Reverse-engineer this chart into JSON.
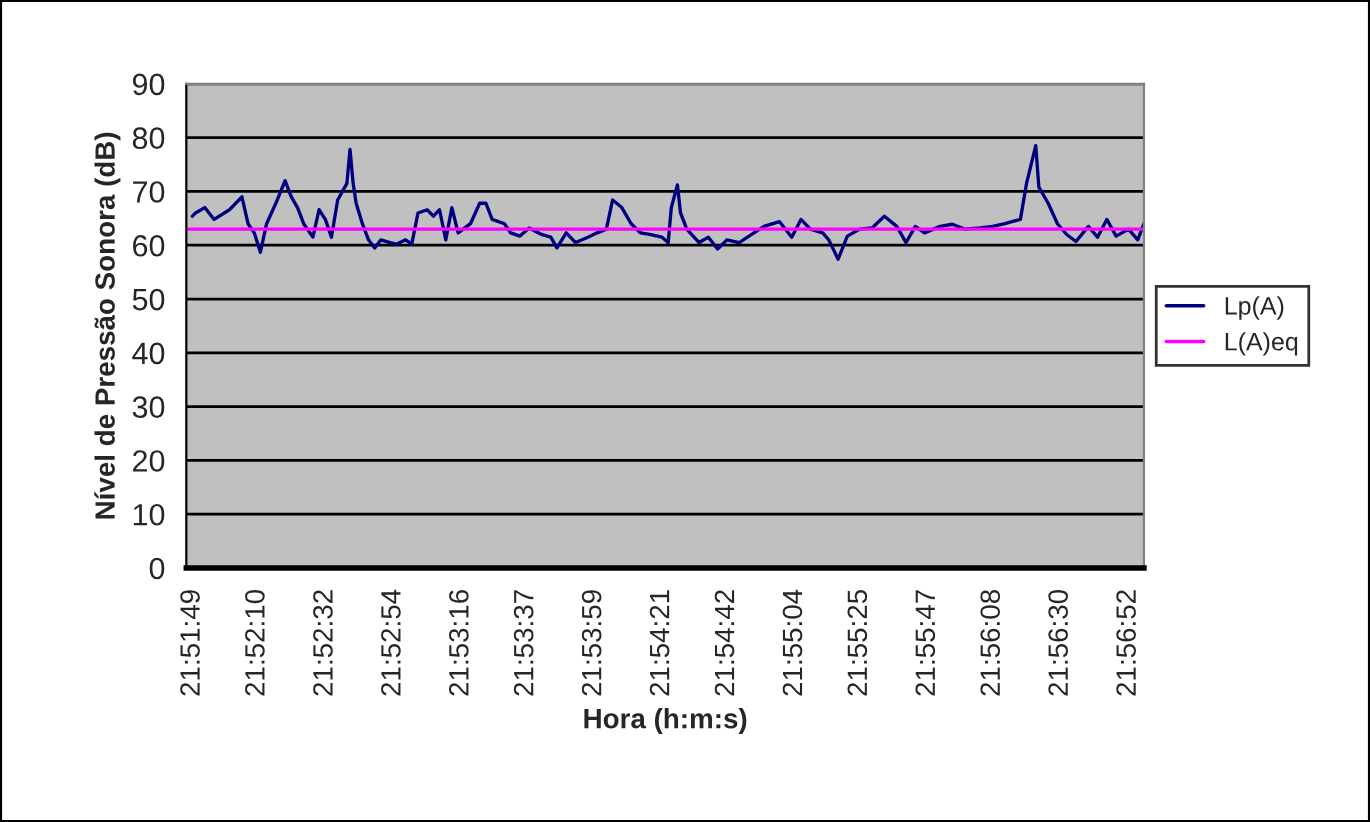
{
  "chart_data": {
    "type": "line",
    "xlabel": "Hora (h:m:s)",
    "ylabel": "Nível de Pressão Sonora (dB)",
    "xlim": [
      21.86306,
      21.94917
    ],
    "ylim": [
      0,
      90
    ],
    "yticks": [
      0,
      10,
      20,
      30,
      40,
      50,
      60,
      70,
      80,
      90
    ],
    "xticks": [
      {
        "value": 21.86361,
        "label": "21:51:49"
      },
      {
        "value": 21.86944,
        "label": "21:52:10"
      },
      {
        "value": 21.87556,
        "label": "21:52:32"
      },
      {
        "value": 21.88167,
        "label": "21:52:54"
      },
      {
        "value": 21.88778,
        "label": "21:53:16"
      },
      {
        "value": 21.89361,
        "label": "21:53:37"
      },
      {
        "value": 21.89972,
        "label": "21:53:59"
      },
      {
        "value": 21.90583,
        "label": "21:54:21"
      },
      {
        "value": 21.91167,
        "label": "21:54:42"
      },
      {
        "value": 21.91778,
        "label": "21:55:04"
      },
      {
        "value": 21.92361,
        "label": "21:55:25"
      },
      {
        "value": 21.92972,
        "label": "21:55:47"
      },
      {
        "value": 21.93556,
        "label": "21:56:08"
      },
      {
        "value": 21.94167,
        "label": "21:56:30"
      },
      {
        "value": 21.94778,
        "label": "21:56:52"
      }
    ],
    "grid": "y",
    "legend": "right",
    "marker": "none",
    "line_style": "solid",
    "series": [
      {
        "name": "Lp(A)",
        "color": "#000080",
        "x": [
          21.86361,
          21.86389,
          21.86472,
          21.86556,
          21.86694,
          21.86806,
          21.86861,
          21.86917,
          21.86972,
          21.87028,
          21.87111,
          21.87194,
          21.8725,
          21.87306,
          21.87361,
          21.87444,
          21.875,
          21.87556,
          21.87611,
          21.87667,
          21.8775,
          21.87778,
          21.87806,
          21.87833,
          21.87889,
          21.87944,
          21.88,
          21.88056,
          21.88139,
          21.88194,
          21.88278,
          21.88333,
          21.88389,
          21.88472,
          21.88528,
          21.88583,
          21.88639,
          21.88694,
          21.8875,
          21.88861,
          21.88944,
          21.89,
          21.89056,
          21.89167,
          21.89222,
          21.89306,
          21.89389,
          21.895,
          21.89583,
          21.89639,
          21.89722,
          21.89806,
          21.89917,
          21.9,
          21.90083,
          21.90139,
          21.90222,
          21.90306,
          21.90389,
          21.90472,
          21.90583,
          21.90639,
          21.90667,
          21.90722,
          21.9075,
          21.90806,
          21.90917,
          21.91,
          21.91083,
          21.91167,
          21.91278,
          21.91389,
          21.915,
          21.91639,
          21.9175,
          21.91833,
          21.91917,
          21.92028,
          21.92083,
          21.92167,
          21.9225,
          21.92361,
          21.92472,
          21.92583,
          21.92694,
          21.92778,
          21.92861,
          21.92944,
          21.93083,
          21.93194,
          21.93306,
          21.93444,
          21.93556,
          21.93667,
          21.93806,
          21.93861,
          21.93944,
          21.93972,
          21.94056,
          21.94139,
          21.94222,
          21.94306,
          21.94417,
          21.945,
          21.94583,
          21.94667,
          21.94778,
          21.94861,
          21.94917
        ],
        "values": [
          65.4,
          66,
          67,
          64.8,
          66.6,
          69,
          64,
          62.3,
          58.7,
          64,
          67.8,
          72,
          69,
          67,
          64,
          61.5,
          66.6,
          64.8,
          61.5,
          68.4,
          71.5,
          77.8,
          71.5,
          67.8,
          64,
          61,
          59.5,
          61,
          60.5,
          60.2,
          61,
          60.2,
          66,
          66.6,
          65.4,
          66.6,
          61,
          67,
          62.3,
          64,
          67.8,
          67.8,
          64.8,
          64,
          62.3,
          61.7,
          63.2,
          62,
          61.5,
          59.5,
          62.3,
          60.5,
          61.5,
          62.3,
          63,
          68.4,
          67,
          64,
          62.3,
          62,
          61.5,
          60.5,
          67,
          71.2,
          66,
          63,
          60.5,
          61.5,
          59.3,
          61,
          60.5,
          62,
          63.5,
          64.4,
          61.5,
          64.8,
          63,
          62.3,
          61,
          57.4,
          61.7,
          63,
          63.2,
          65.4,
          63.5,
          60.5,
          63.5,
          62.3,
          63.5,
          63.9,
          63,
          63.2,
          63.5,
          64,
          64.8,
          71.5,
          78.5,
          70.8,
          67.8,
          64,
          62,
          60.7,
          63.5,
          61.5,
          64.8,
          61.7,
          63,
          61,
          64
        ]
      },
      {
        "name": "L(A)eq",
        "color": "#ff00ff",
        "x": [
          21.86306,
          21.94917
        ],
        "values": [
          63,
          63
        ]
      }
    ]
  }
}
